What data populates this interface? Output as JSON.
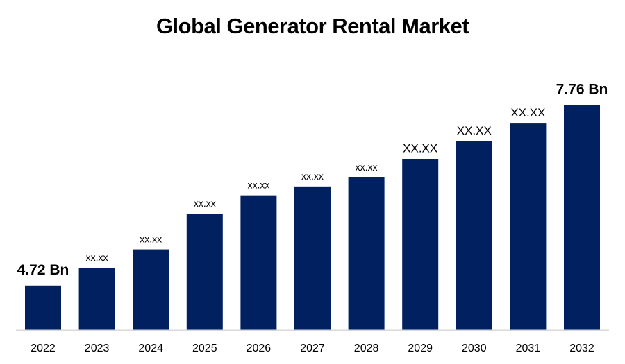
{
  "chart_data": {
    "type": "bar",
    "title": "Global Generator Rental Market",
    "xlabel": "",
    "ylabel": "",
    "categories": [
      "2022",
      "2023",
      "2024",
      "2025",
      "2026",
      "2027",
      "2028",
      "2029",
      "2030",
      "2031",
      "2032"
    ],
    "values": [
      4.72,
      5.02,
      5.33,
      5.93,
      6.24,
      6.39,
      6.54,
      6.85,
      7.15,
      7.45,
      7.76
    ],
    "data_labels": [
      "4.72 Bn",
      "xx.xx",
      "xx.xx",
      "xx.xx",
      "xx.xx",
      "xx.xx",
      "xx.xx",
      "XX.XX",
      "XX.XX",
      "XX.XX",
      "7.76 Bn"
    ],
    "ylim": [
      3.97,
      8.0
    ],
    "grid": false,
    "legend": "none",
    "bar_color": "#002060",
    "axis_color": "#d9d9d9"
  }
}
